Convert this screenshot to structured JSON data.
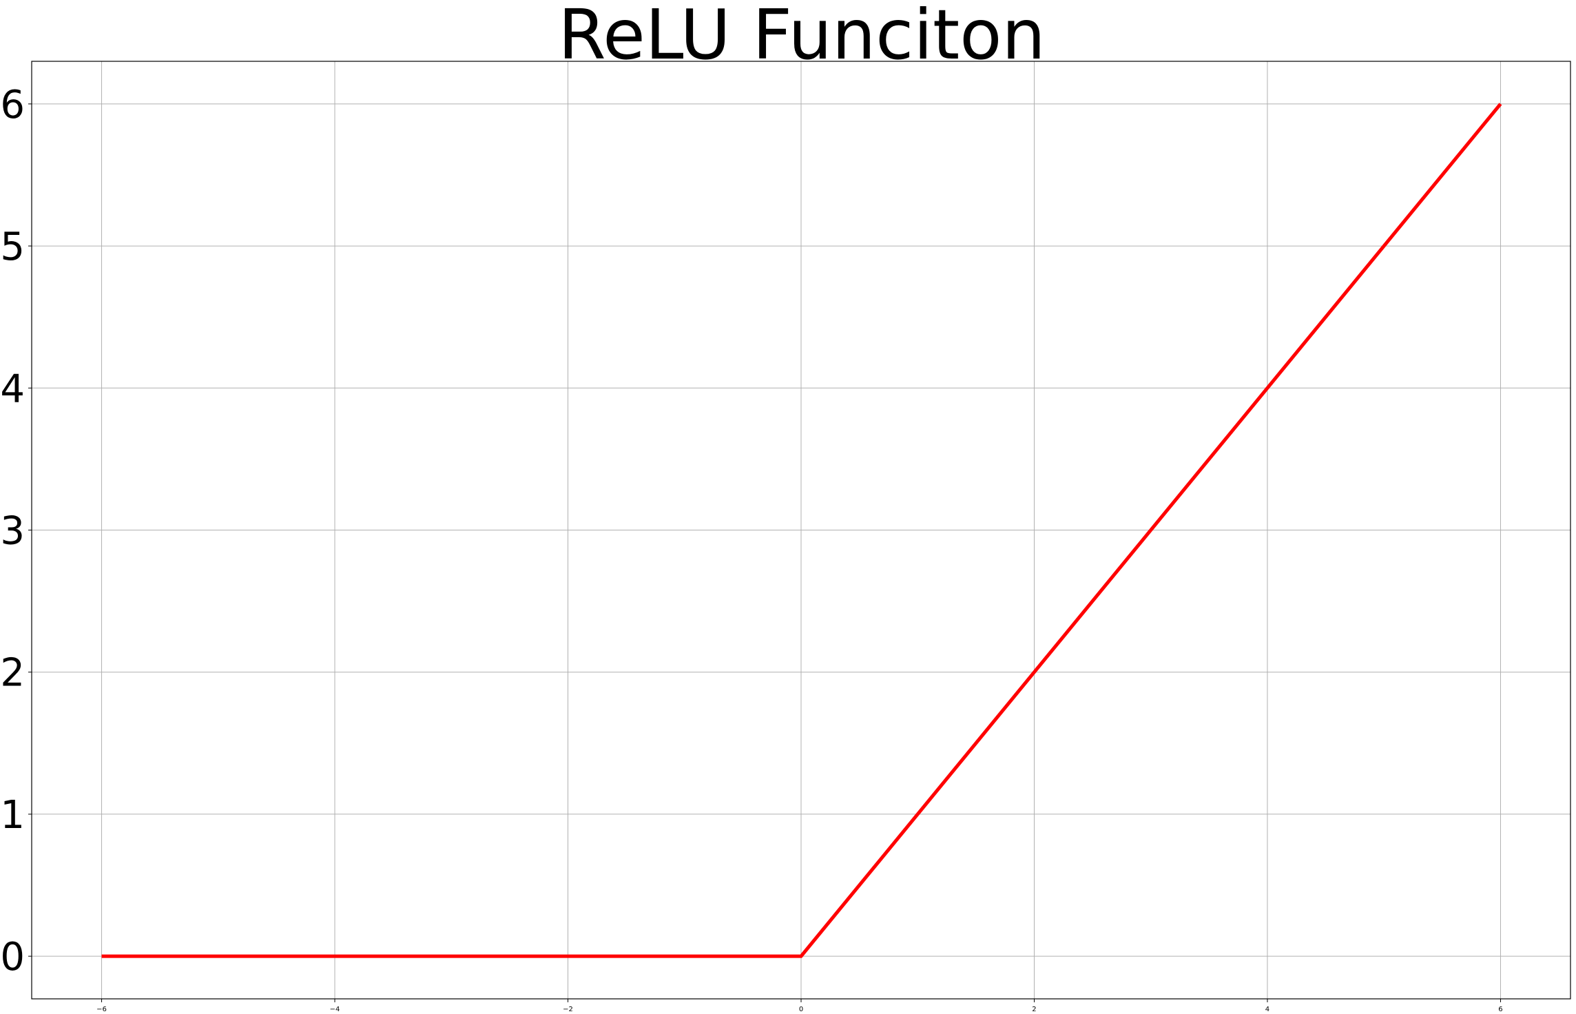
{
  "chart_data": {
    "type": "line",
    "title": "ReLU Funciton",
    "xlabel": "",
    "ylabel": "",
    "xlim": [
      -6.6,
      6.6
    ],
    "ylim": [
      -0.3,
      6.3
    ],
    "grid": true,
    "x_ticks": [
      -6,
      -4,
      -2,
      0,
      2,
      4,
      6
    ],
    "x_tick_labels": [
      "−6",
      "−4",
      "−2",
      "0",
      "2",
      "4",
      "6"
    ],
    "y_ticks": [
      0,
      1,
      2,
      3,
      4,
      5,
      6
    ],
    "y_tick_labels": [
      "0",
      "1",
      "2",
      "3",
      "4",
      "5",
      "6"
    ],
    "series": [
      {
        "color": "#ff0000",
        "x": [
          -6,
          0,
          6
        ],
        "y": [
          0,
          0,
          6
        ]
      }
    ]
  }
}
